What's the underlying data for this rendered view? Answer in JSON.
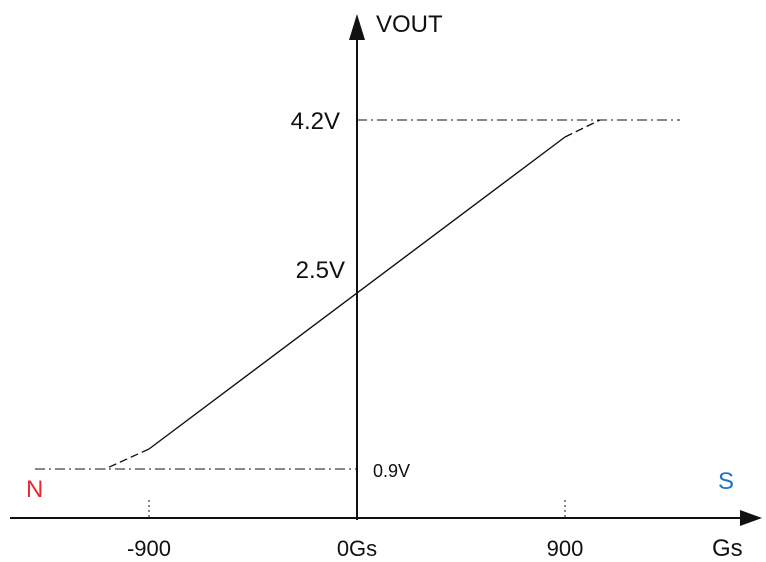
{
  "chart_data": {
    "type": "line",
    "x_axis_label": "Gs",
    "y_axis_label": "VOUT",
    "x_tick_labels": [
      "-900",
      "0Gs",
      "900"
    ],
    "x_ticks": [
      -900,
      0,
      900
    ],
    "y_tick_labels": [
      "4.2V",
      "2.5V",
      "0.9V"
    ],
    "y_ticks": [
      4.2,
      2.5,
      0.9
    ],
    "pole_left": "N",
    "pole_right": "S",
    "colors": {
      "pole_left": "#e8282f",
      "pole_right": "#1f74c4",
      "line": "#111111"
    },
    "series": [
      {
        "style": "solid",
        "x": [
          -900,
          900
        ],
        "y": [
          0.9,
          4.2
        ]
      }
    ],
    "saturation": [
      {
        "style": "dashed",
        "x": [
          -1050,
          -900
        ],
        "y": [
          0.9,
          0.9
        ]
      },
      {
        "style": "dashed",
        "x": [
          900,
          1050
        ],
        "y": [
          4.2,
          4.2
        ]
      }
    ]
  }
}
